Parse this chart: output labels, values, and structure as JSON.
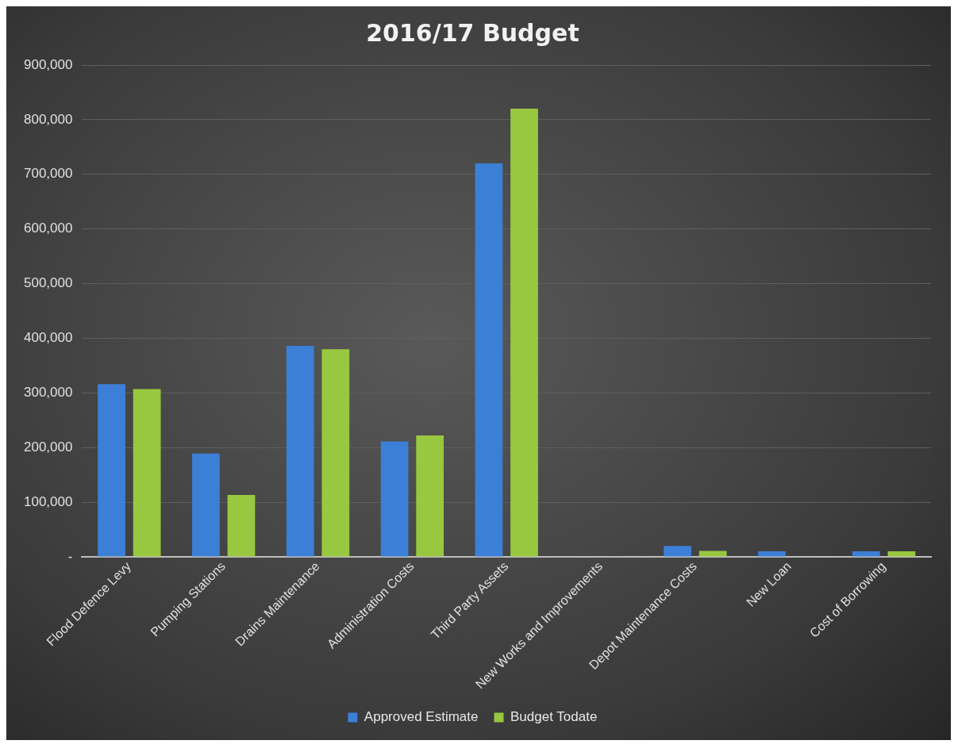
{
  "chart_data": {
    "type": "bar",
    "title": "2016/17 Budget",
    "categories": [
      "Flood Defence Levy",
      "Pumping Stations",
      "Drains Maintenance",
      "Administration Costs",
      "Third Party Assets",
      "New Works and Improvements",
      "Depot Maintenance Costs",
      "New Loan",
      "Cost of Borrowing"
    ],
    "series": [
      {
        "name": "Approved Estimate",
        "color": "#3c7fd6",
        "values": [
          316000,
          189000,
          386000,
          211000,
          720000,
          0,
          20000,
          10000,
          10000
        ]
      },
      {
        "name": "Budget Todate",
        "color": "#97c83f",
        "values": [
          307000,
          113000,
          380000,
          222000,
          820000,
          0,
          11000,
          0,
          10000
        ]
      }
    ],
    "ylim": [
      0,
      900000
    ],
    "yticks": [
      {
        "value": 0,
        "label": "-"
      },
      {
        "value": 100000,
        "label": "100,000"
      },
      {
        "value": 200000,
        "label": "200,000"
      },
      {
        "value": 300000,
        "label": "300,000"
      },
      {
        "value": 400000,
        "label": "400,000"
      },
      {
        "value": 500000,
        "label": "500,000"
      },
      {
        "value": 600000,
        "label": "600,000"
      },
      {
        "value": 700000,
        "label": "700,000"
      },
      {
        "value": 800000,
        "label": "800,000"
      },
      {
        "value": 900000,
        "label": "900,000"
      }
    ],
    "grid": "y",
    "legend": "bottom"
  }
}
